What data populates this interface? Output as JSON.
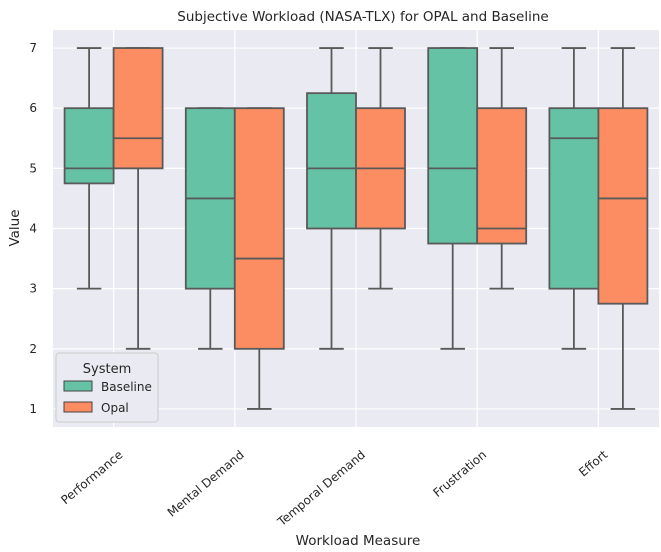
{
  "chart_data": {
    "type": "box",
    "title": "Subjective Workload (NASA-TLX) for OPAL and Baseline",
    "xlabel": "Workload Measure",
    "ylabel": "Value",
    "ylim": [
      0.7,
      7.3
    ],
    "yticks": [
      1,
      2,
      3,
      4,
      5,
      6,
      7
    ],
    "grid": true,
    "categories": [
      "Performance",
      "Mental Demand",
      "Temporal Demand",
      "Frustration",
      "Effort"
    ],
    "legend": {
      "title": "System",
      "position": "lower-left"
    },
    "series": [
      {
        "name": "Baseline",
        "color": "#66c2a5",
        "boxes": [
          {
            "min": 3,
            "q1": 4.75,
            "median": 5,
            "q3": 6,
            "max": 7
          },
          {
            "min": 2,
            "q1": 3,
            "median": 4.5,
            "q3": 6,
            "max": 6
          },
          {
            "min": 2,
            "q1": 4,
            "median": 5,
            "q3": 6.25,
            "max": 7
          },
          {
            "min": 2,
            "q1": 3.75,
            "median": 5,
            "q3": 7,
            "max": 7
          },
          {
            "min": 2,
            "q1": 3,
            "median": 5.5,
            "q3": 6,
            "max": 7
          }
        ]
      },
      {
        "name": "Opal",
        "color": "#fc8d62",
        "boxes": [
          {
            "min": 2,
            "q1": 5,
            "median": 5.5,
            "q3": 7,
            "max": 7
          },
          {
            "min": 1,
            "q1": 2,
            "median": 3.5,
            "q3": 6,
            "max": 6
          },
          {
            "min": 3,
            "q1": 4,
            "median": 5,
            "q3": 6,
            "max": 7
          },
          {
            "min": 3,
            "q1": 3.75,
            "median": 4,
            "q3": 6,
            "max": 7
          },
          {
            "min": 1,
            "q1": 2.75,
            "median": 4.5,
            "q3": 6,
            "max": 7
          }
        ]
      }
    ]
  }
}
